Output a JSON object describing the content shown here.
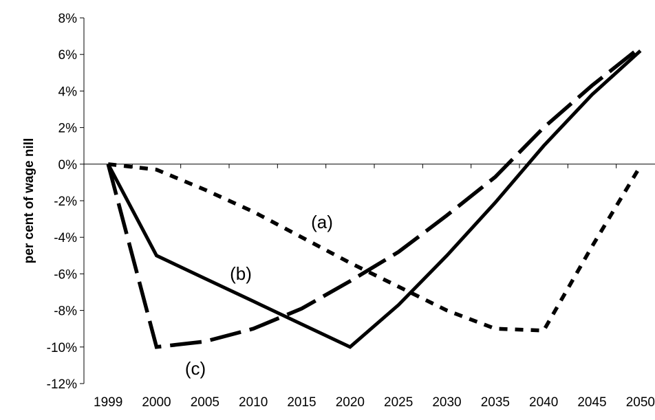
{
  "chart_data": {
    "type": "line",
    "title": "",
    "xlabel": "",
    "ylabel": "per cent of wage nill",
    "x": [
      "1999",
      "2000",
      "2005",
      "2010",
      "2015",
      "2020",
      "2025",
      "2030",
      "2035",
      "2040",
      "2045",
      "2050"
    ],
    "ylim": [
      -12,
      8
    ],
    "yticks": [
      -12,
      -10,
      -8,
      -6,
      -4,
      -2,
      0,
      2,
      4,
      6,
      8
    ],
    "ytick_labels": [
      "-12%",
      "-10%",
      "-8%",
      "-6%",
      "-4%",
      "-2%",
      "0%",
      "2%",
      "4%",
      "6%",
      "8%"
    ],
    "grid": false,
    "legend": "none",
    "series": [
      {
        "name": "(a)",
        "style": "short-dash",
        "values": [
          0,
          -0.3,
          -1.4,
          -2.6,
          -4.0,
          -5.4,
          -6.7,
          -8.0,
          -9.0,
          -9.1,
          -4.5,
          -0.1
        ]
      },
      {
        "name": "(b)",
        "style": "solid",
        "values": [
          0,
          -5.0,
          -6.25,
          -7.5,
          -8.75,
          -10.0,
          -7.7,
          -5.0,
          -2.1,
          1.0,
          3.8,
          6.2
        ]
      },
      {
        "name": "(c)",
        "style": "long-dash",
        "values": [
          0,
          -10.0,
          -9.7,
          -9.0,
          -7.9,
          -6.4,
          -4.8,
          -2.8,
          -0.7,
          2.0,
          4.3,
          6.4
        ]
      }
    ],
    "colors": {
      "line": "#000000",
      "axis": "#000000",
      "background": "#ffffff"
    }
  }
}
